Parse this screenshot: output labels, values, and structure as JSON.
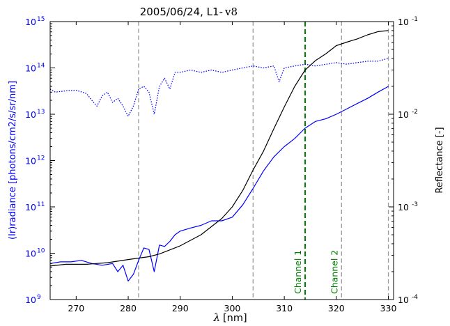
{
  "chart_data": {
    "type": "line",
    "title": "2005/06/24, L1-",
    "title_suffix": "v8",
    "xlabel_symbol": "λ",
    "xlabel_unit": "[nm]",
    "ylabel_left": "(Ir)radiance  [photons/cm2/s/sr/nm]",
    "ylabel_right": "Reflectance [-]",
    "xlim": [
      265,
      331
    ],
    "x_ticks": [
      "270",
      "280",
      "290",
      "300",
      "310",
      "320",
      "330"
    ],
    "x_tick_values": [
      270,
      280,
      290,
      300,
      310,
      320,
      330
    ],
    "left_axis": {
      "scale": "log",
      "ylim": [
        1000000000.0,
        1000000000000000.0
      ],
      "tick_exponents": [
        "9",
        "10",
        "11",
        "12",
        "13",
        "14",
        "15"
      ],
      "tick_base": "10",
      "color": "#0000ff"
    },
    "right_axis": {
      "scale": "log",
      "ylim": [
        0.0001,
        0.1
      ],
      "tick_exponents": [
        "-4",
        "-3",
        "-2",
        "-1"
      ],
      "tick_base": "10",
      "color": "#000000"
    },
    "vertical_lines": [
      {
        "x": 282,
        "color": "#999999",
        "style": "dashed"
      },
      {
        "x": 304,
        "color": "#999999",
        "style": "dashed"
      },
      {
        "x": 314,
        "color": "#008000",
        "style": "dashed",
        "label": "Channel 1"
      },
      {
        "x": 321,
        "color": "#999999",
        "style": "dashed",
        "label": "Channel 2"
      },
      {
        "x": 330,
        "color": "#999999",
        "style": "dashed"
      }
    ],
    "series": [
      {
        "axis": "left",
        "color": "#0000ff",
        "style": "dotted",
        "x": [
          265,
          266,
          268,
          270,
          272,
          273,
          274,
          275,
          276,
          277,
          278,
          279,
          280,
          281,
          282,
          283,
          284,
          285,
          286,
          287,
          288,
          289,
          290,
          292,
          294,
          296,
          298,
          300,
          302,
          304,
          306,
          308,
          309,
          310,
          312,
          314,
          316,
          318,
          320,
          322,
          324,
          326,
          328,
          330
        ],
        "y": [
          35000000000000.0,
          30000000000000.0,
          32000000000000.0,
          33000000000000.0,
          28000000000000.0,
          20000000000000.0,
          15000000000000.0,
          25000000000000.0,
          30000000000000.0,
          18000000000000.0,
          22000000000000.0,
          15000000000000.0,
          9000000000000.0,
          15000000000000.0,
          35000000000000.0,
          40000000000000.0,
          30000000000000.0,
          10000000000000.0,
          40000000000000.0,
          60000000000000.0,
          35000000000000.0,
          80000000000000.0,
          80000000000000.0,
          90000000000000.0,
          80000000000000.0,
          90000000000000.0,
          80000000000000.0,
          90000000000000.0,
          100000000000000.0,
          110000000000000.0,
          100000000000000.0,
          110000000000000.0,
          50000000000000.0,
          100000000000000.0,
          110000000000000.0,
          120000000000000.0,
          110000000000000.0,
          120000000000000.0,
          130000000000000.0,
          120000000000000.0,
          130000000000000.0,
          140000000000000.0,
          140000000000000.0,
          160000000000000.0
        ]
      },
      {
        "axis": "left",
        "color": "#0000ff",
        "style": "solid",
        "x": [
          265,
          267,
          269,
          271,
          273,
          275,
          277,
          278,
          279,
          280,
          281,
          282,
          283,
          284,
          285,
          286,
          287,
          288,
          289,
          290,
          292,
          294,
          296,
          298,
          300,
          302,
          304,
          306,
          308,
          310,
          312,
          314,
          316,
          318,
          320,
          322,
          324,
          326,
          328,
          330
        ],
        "y": [
          6000000000.0,
          6500000000.0,
          6500000000.0,
          7000000000.0,
          6000000000.0,
          5500000000.0,
          6000000000.0,
          4000000000.0,
          5500000000.0,
          2500000000.0,
          3500000000.0,
          7000000000.0,
          13000000000.0,
          12000000000.0,
          4000000000.0,
          15000000000.0,
          14000000000.0,
          18000000000.0,
          25000000000.0,
          30000000000.0,
          35000000000.0,
          40000000000.0,
          50000000000.0,
          50000000000.0,
          60000000000.0,
          110000000000.0,
          250000000000.0,
          600000000000.0,
          1200000000000.0,
          2000000000000.0,
          3000000000000.0,
          5000000000000.0,
          7000000000000.0,
          8000000000000.0,
          10000000000000.0,
          13000000000000.0,
          17000000000000.0,
          22000000000000.0,
          30000000000000.0,
          40000000000000.0
        ]
      },
      {
        "axis": "right",
        "color": "#000000",
        "style": "solid",
        "x": [
          265,
          268,
          272,
          276,
          280,
          282,
          284,
          286,
          290,
          294,
          298,
          300,
          302,
          304,
          306,
          308,
          310,
          312,
          314,
          316,
          318,
          320,
          322,
          324,
          326,
          328,
          330
        ],
        "y": [
          0.00023,
          0.00024,
          0.00024,
          0.00025,
          0.00027,
          0.00028,
          0.00029,
          0.00031,
          0.00038,
          0.0005,
          0.00075,
          0.001,
          0.0015,
          0.0025,
          0.004,
          0.007,
          0.012,
          0.02,
          0.03,
          0.038,
          0.045,
          0.055,
          0.06,
          0.065,
          0.072,
          0.078,
          0.08
        ]
      }
    ]
  }
}
